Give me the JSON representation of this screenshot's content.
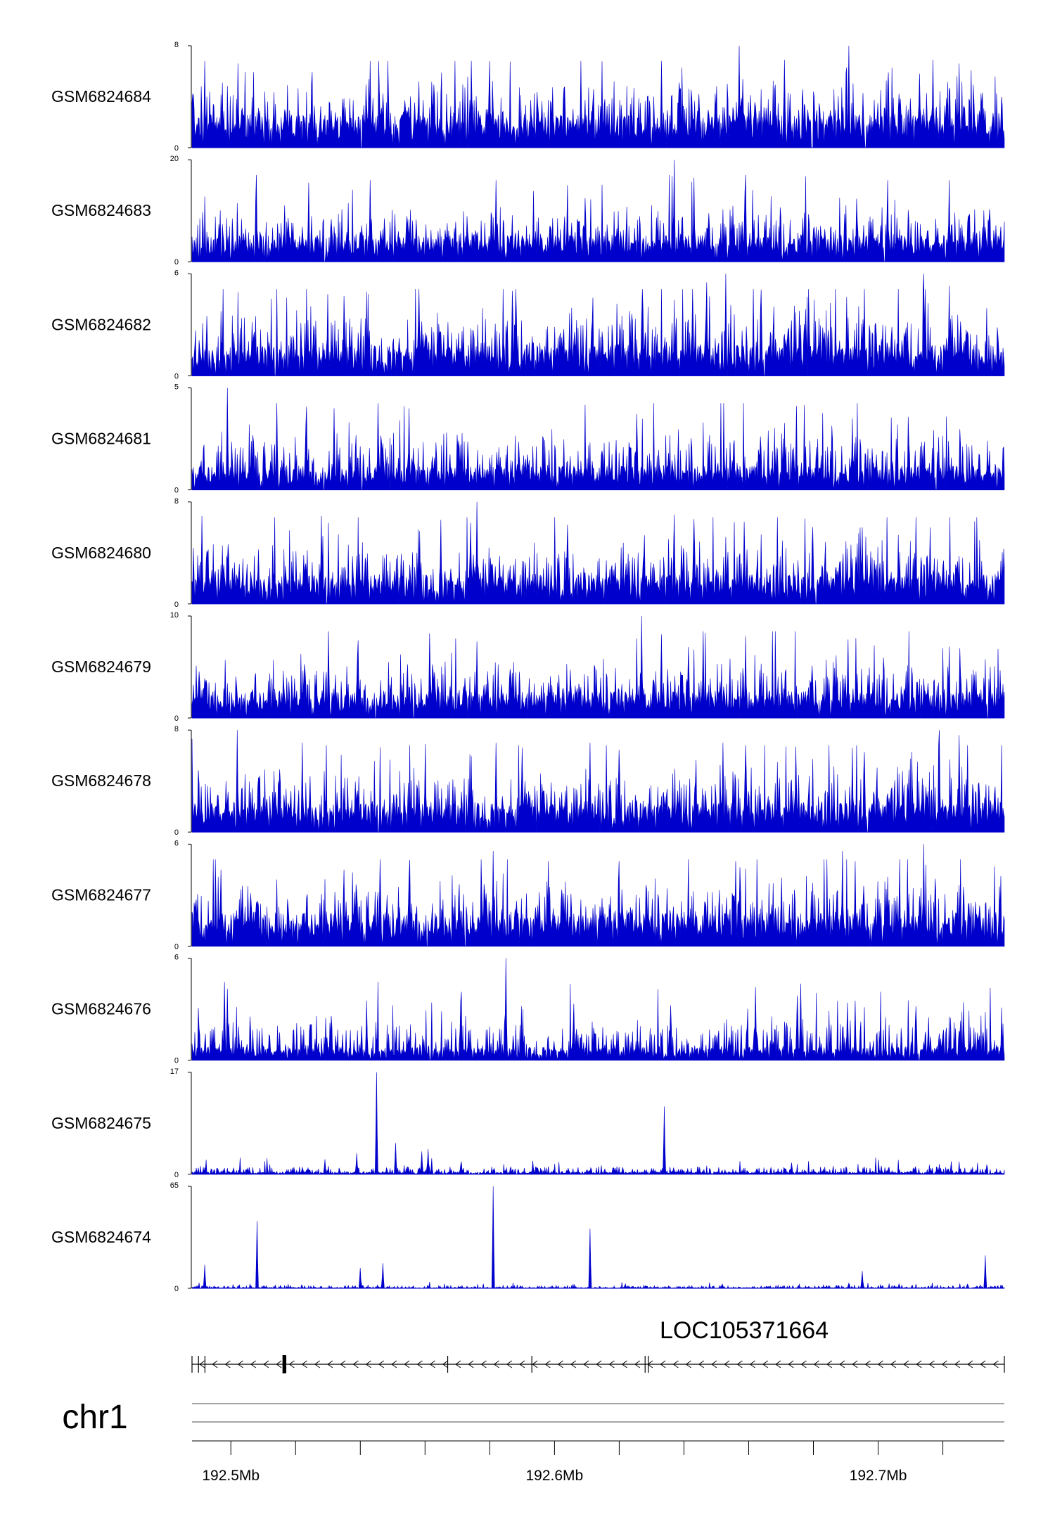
{
  "chart_data": {
    "type": "area",
    "region": {
      "chrom": "chr1",
      "start": 192.488,
      "end": 192.739,
      "unit": "Mb"
    },
    "color": "#0000cc",
    "tracks": [
      {
        "name": "GSM6824684",
        "ymax": 8,
        "tick_labels": [
          "8",
          "0"
        ],
        "baseline": 2.0,
        "noise": 1.6,
        "peaks": [
          [
            192.492,
            6.8
          ],
          [
            192.543,
            6.8
          ],
          [
            192.58,
            6.8
          ],
          [
            192.633,
            6.8
          ],
          [
            192.657,
            8.0
          ],
          [
            192.671,
            6.9
          ],
          [
            192.691,
            8.0
          ],
          [
            192.717,
            6.9
          ],
          [
            192.725,
            6.6
          ]
        ]
      },
      {
        "name": "GSM6824683",
        "ymax": 20,
        "tick_labels": [
          "20",
          "0"
        ],
        "baseline": 4.0,
        "noise": 3.5,
        "peaks": [
          [
            192.524,
            15.5
          ],
          [
            192.543,
            16.0
          ],
          [
            192.582,
            16.0
          ],
          [
            192.604,
            15.0
          ],
          [
            192.637,
            20.0
          ],
          [
            192.643,
            16.5
          ],
          [
            192.659,
            17.0
          ],
          [
            192.703,
            16.0
          ],
          [
            192.722,
            16.0
          ]
        ]
      },
      {
        "name": "GSM6824682",
        "ymax": 6,
        "tick_labels": [
          "6",
          "0"
        ],
        "baseline": 1.4,
        "noise": 1.4,
        "peaks": [
          [
            192.53,
            4.8
          ],
          [
            192.535,
            4.7
          ],
          [
            192.587,
            5.0
          ],
          [
            192.647,
            5.5
          ],
          [
            192.653,
            6.0
          ],
          [
            192.714,
            6.0
          ],
          [
            192.722,
            5.3
          ]
        ]
      },
      {
        "name": "GSM6824681",
        "ymax": 5,
        "tick_labels": [
          "5",
          "0"
        ],
        "baseline": 0.9,
        "noise": 1.1,
        "peaks": [
          [
            192.499,
            3.6
          ],
          [
            192.499,
            5.0
          ],
          [
            192.532,
            4.0
          ],
          [
            192.555,
            4.0
          ],
          [
            192.57,
            2.7
          ],
          [
            192.666,
            2.9
          ],
          [
            192.692,
            3.5
          ]
        ]
      },
      {
        "name": "GSM6824680",
        "ymax": 8,
        "tick_labels": [
          "8",
          "0"
        ],
        "baseline": 1.8,
        "noise": 1.6,
        "peaks": [
          [
            192.491,
            6.9
          ],
          [
            192.528,
            6.9
          ],
          [
            192.565,
            6.6
          ],
          [
            192.576,
            8.0
          ],
          [
            192.637,
            7.0
          ],
          [
            192.695,
            6.0
          ],
          [
            192.716,
            6.0
          ]
        ]
      },
      {
        "name": "GSM6824679",
        "ymax": 10,
        "tick_labels": [
          "10",
          "0"
        ],
        "baseline": 2.0,
        "noise": 2.0,
        "peaks": [
          [
            192.576,
            7.5
          ],
          [
            192.627,
            10.0
          ],
          [
            192.633,
            8.2
          ],
          [
            192.646,
            8.5
          ],
          [
            192.659,
            8.0
          ],
          [
            192.722,
            7.0
          ]
        ]
      },
      {
        "name": "GSM6824678",
        "ymax": 8,
        "tick_labels": [
          "8",
          "0"
        ],
        "baseline": 1.8,
        "noise": 1.7,
        "peaks": [
          [
            192.488,
            7.3
          ],
          [
            192.502,
            8.0
          ],
          [
            192.522,
            7.0
          ],
          [
            192.56,
            6.9
          ],
          [
            192.582,
            7.0
          ],
          [
            192.611,
            7.0
          ],
          [
            192.652,
            7.0
          ],
          [
            192.692,
            6.6
          ],
          [
            192.719,
            8.0
          ],
          [
            192.725,
            7.6
          ]
        ]
      },
      {
        "name": "GSM6824677",
        "ymax": 6,
        "tick_labels": [
          "6",
          "0"
        ],
        "baseline": 1.5,
        "noise": 1.3,
        "peaks": [
          [
            192.497,
            4.5
          ],
          [
            192.535,
            4.5
          ],
          [
            192.581,
            5.6
          ],
          [
            192.598,
            5.0
          ],
          [
            192.62,
            5.0
          ],
          [
            192.656,
            5.0
          ],
          [
            192.689,
            5.6
          ],
          [
            192.693,
            5.0
          ],
          [
            192.714,
            6.0
          ]
        ]
      },
      {
        "name": "GSM6824676",
        "ymax": 6,
        "tick_labels": [
          "6",
          "0"
        ],
        "baseline": 0.6,
        "noise": 1.0,
        "peaks": [
          [
            192.498,
            4.6
          ],
          [
            192.499,
            4.2
          ],
          [
            192.542,
            3.5
          ],
          [
            192.571,
            3.5
          ],
          [
            192.585,
            6.0
          ],
          [
            192.662,
            4.3
          ],
          [
            192.676,
            4.5
          ],
          [
            192.693,
            3.5
          ]
        ]
      },
      {
        "name": "GSM6824675",
        "ymax": 17,
        "tick_labels": [
          "17",
          "0"
        ],
        "baseline": 0.3,
        "noise": 0.6,
        "peaks": [
          [
            192.545,
            17.0
          ],
          [
            192.551,
            5.2
          ],
          [
            192.559,
            3.8
          ],
          [
            192.561,
            4.2
          ],
          [
            192.539,
            3.5
          ],
          [
            192.529,
            2.5
          ],
          [
            192.634,
            11.3
          ],
          [
            192.701,
            1.4
          ]
        ]
      },
      {
        "name": "GSM6824674",
        "ymax": 65,
        "tick_labels": [
          "65",
          "0"
        ],
        "baseline": 0.4,
        "noise": 0.9,
        "peaks": [
          [
            192.492,
            15.0
          ],
          [
            192.508,
            43.0
          ],
          [
            192.54,
            13.0
          ],
          [
            192.547,
            16.0
          ],
          [
            192.581,
            65.0
          ],
          [
            192.611,
            38.0
          ],
          [
            192.695,
            11.0
          ],
          [
            192.733,
            21.0
          ]
        ]
      }
    ],
    "gene": {
      "name": "LOC105371664",
      "start": 192.488,
      "end": 192.739,
      "strand": "-",
      "exon_marks": [
        192.49,
        192.492,
        192.517,
        192.567,
        192.593,
        192.628,
        192.629
      ]
    },
    "chromosome_label": "chr1",
    "genome_axis": {
      "range": [
        192.488,
        192.739
      ],
      "major_ticks": [
        192.5,
        192.6,
        192.7
      ],
      "tick_labels": [
        "192.5Mb",
        "192.6Mb",
        "192.7Mb"
      ],
      "minor_step": 0.02
    }
  }
}
